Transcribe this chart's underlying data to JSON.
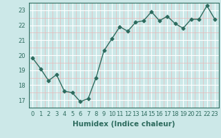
{
  "x": [
    0,
    1,
    2,
    3,
    4,
    5,
    6,
    7,
    8,
    9,
    10,
    11,
    12,
    13,
    14,
    15,
    16,
    17,
    18,
    19,
    20,
    21,
    22,
    23
  ],
  "y": [
    19.8,
    19.1,
    18.3,
    18.7,
    17.6,
    17.5,
    16.9,
    17.1,
    18.5,
    20.3,
    21.1,
    21.9,
    21.6,
    22.2,
    22.3,
    22.9,
    22.3,
    22.6,
    22.1,
    21.8,
    22.4,
    22.4,
    23.3,
    22.4
  ],
  "xlabel": "Humidex (Indice chaleur)",
  "xlim": [
    -0.5,
    23.5
  ],
  "ylim": [
    16.5,
    23.5
  ],
  "yticks": [
    17,
    18,
    19,
    20,
    21,
    22,
    23
  ],
  "xticks": [
    0,
    1,
    2,
    3,
    4,
    5,
    6,
    7,
    8,
    9,
    10,
    11,
    12,
    13,
    14,
    15,
    16,
    17,
    18,
    19,
    20,
    21,
    22,
    23
  ],
  "line_color": "#2d6b5e",
  "bg_color": "#cce8e8",
  "grid_color": "#ffffff",
  "grid_minor_color": "#e8c8c8",
  "marker": "D",
  "marker_size": 2.5,
  "line_width": 1.0,
  "xlabel_fontsize": 7.5,
  "tick_fontsize": 6.0
}
